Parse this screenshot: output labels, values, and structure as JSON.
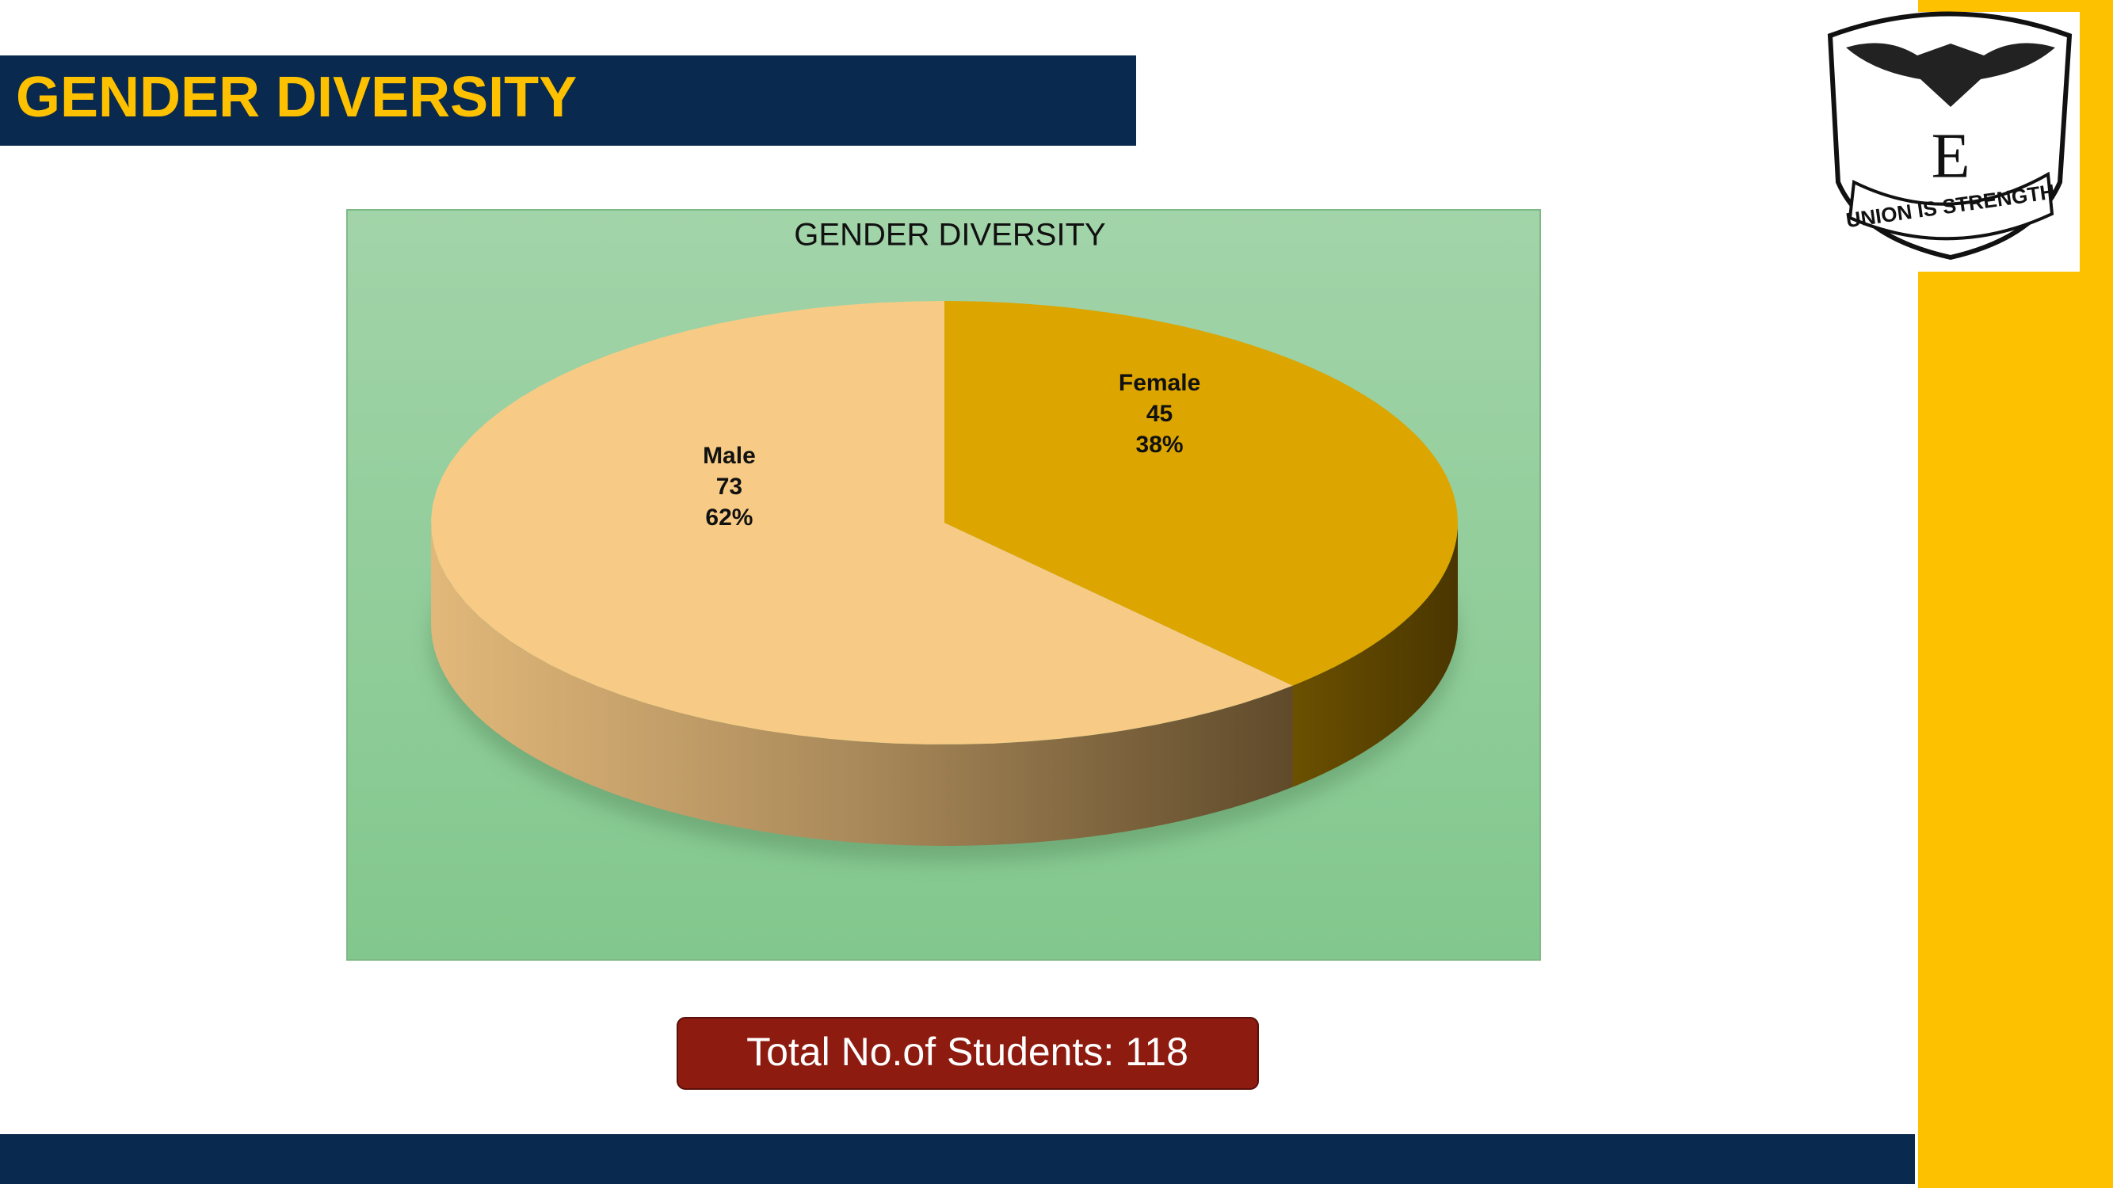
{
  "header": {
    "title": "GENDER DIVERSITY"
  },
  "chart_data": {
    "type": "pie",
    "title": "GENDER DIVERSITY",
    "categories": [
      "Male",
      "Female"
    ],
    "values": [
      73,
      45
    ],
    "percent_labels": [
      "62%",
      "38%"
    ],
    "colors": [
      "#f7cb85",
      "#dca500"
    ]
  },
  "footer": {
    "total": "Total No.of Students: 118"
  },
  "logo": {
    "motto": "UNION IS STRENGTH"
  }
}
